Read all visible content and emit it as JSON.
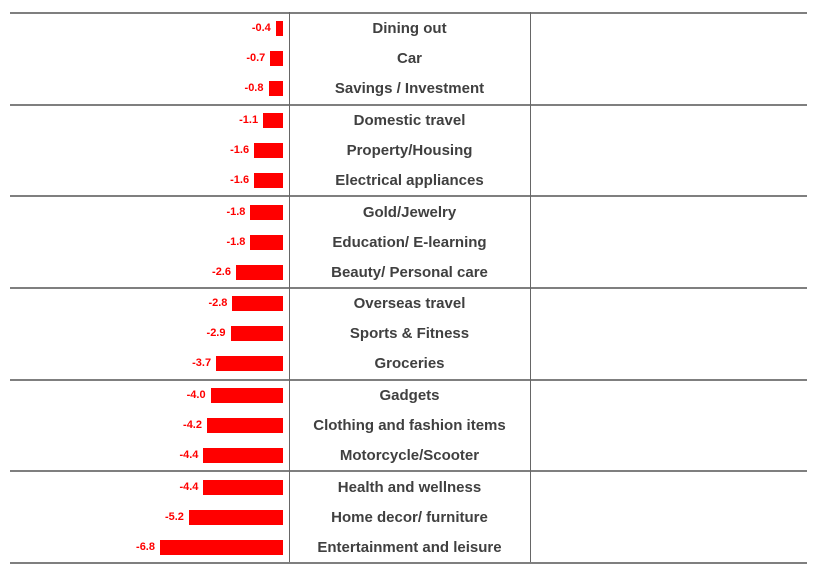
{
  "chart_data": {
    "type": "bar",
    "orientation": "horizontal",
    "title": "",
    "xlabel": "",
    "ylabel": "",
    "legend": "none",
    "axis_labels_visible": false,
    "xlim": [
      -7.6,
      0
    ],
    "group_size": 3,
    "categories": [
      "Dining out",
      "Car",
      "Savings / Investment",
      "Domestic travel",
      "Property/Housing",
      "Electrical appliances",
      "Gold/Jewelry",
      "Education/ E-learning",
      "Beauty/ Personal care",
      "Overseas travel",
      "Sports & Fitness",
      "Groceries",
      "Gadgets",
      "Clothing and fashion items",
      "Motorcycle/Scooter",
      "Health and wellness",
      "Home decor/ furniture",
      "Entertainment and leisure"
    ],
    "values": [
      -0.4,
      -0.7,
      -0.8,
      -1.1,
      -1.6,
      -1.6,
      -1.8,
      -1.8,
      -2.6,
      -2.8,
      -2.9,
      -3.7,
      -4.0,
      -4.2,
      -4.4,
      -4.4,
      -5.2,
      -6.8
    ],
    "value_labels": [
      "-0.4",
      "-0.7",
      "-0.8",
      "-1.1",
      "-1.6",
      "-1.6",
      "-1.8",
      "-1.8",
      "-2.6",
      "-2.8",
      "-2.9",
      "-3.7",
      "-4.0",
      "-4.2",
      "-4.4",
      "-4.4",
      "-5.2",
      "-6.8"
    ],
    "bar_color": "#ff0000",
    "value_label_color": "#ff0000",
    "category_label_color": "#404040",
    "separator_line_color": "#7f7f7f",
    "column_line_color": "#666666"
  }
}
